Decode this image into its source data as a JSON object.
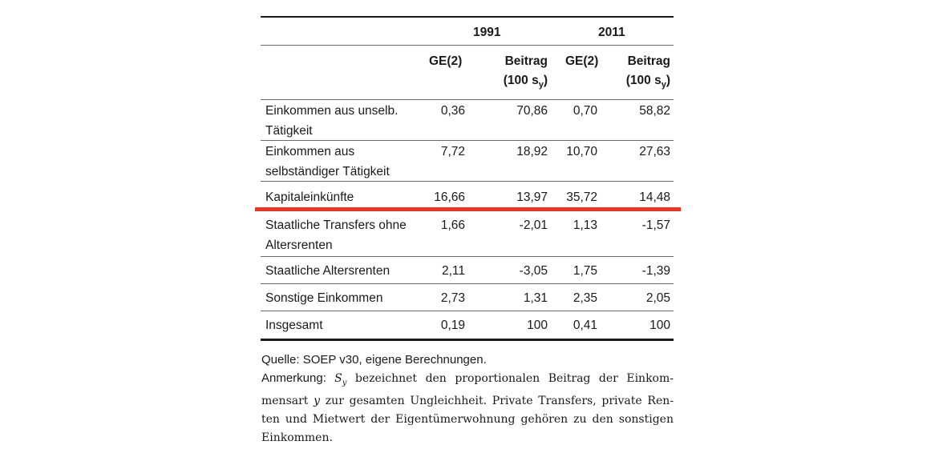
{
  "table": {
    "year1": "1991",
    "year2": "2011",
    "col_ge": "GE(2)",
    "col_beitrag_line1": "Beitrag",
    "col_beitrag_line2": "(100 s",
    "col_beitrag_sub": "y",
    "col_beitrag_close": ")",
    "rows": [
      {
        "label_l1": "Einkommen aus unselb.",
        "label_l2": "Tätigkeit",
        "ge1991": "0,36",
        "b1991": "70,86",
        "ge2011": "0,70",
        "b2011": "58,82"
      },
      {
        "label_l1": "Einkommen aus",
        "label_l2": "selbständiger Tätigkeit",
        "ge1991": "7,72",
        "b1991": "18,92",
        "ge2011": "10,70",
        "b2011": "27,63"
      },
      {
        "label_l1": "Kapitaleinkünfte",
        "label_l2": "",
        "ge1991": "16,66",
        "b1991": "13,97",
        "ge2011": "35,72",
        "b2011": "14,48"
      },
      {
        "label_l1": "Staatliche Transfers ohne",
        "label_l2": "Altersrenten",
        "ge1991": "1,66",
        "b1991": "-2,01",
        "ge2011": "1,13",
        "b2011": "-1,57"
      },
      {
        "label_l1": "Staatliche Altersrenten",
        "label_l2": "",
        "ge1991": "2,11",
        "b1991": "-3,05",
        "ge2011": "1,75",
        "b2011": "-1,39"
      },
      {
        "label_l1": "Sonstige Einkommen",
        "label_l2": "",
        "ge1991": "2,73",
        "b1991": "1,31",
        "ge2011": "2,35",
        "b2011": "2,05"
      },
      {
        "label_l1": "Insgesamt",
        "label_l2": "",
        "ge1991": "0,19",
        "b1991": "100",
        "ge2011": "0,41",
        "b2011": "100"
      }
    ]
  },
  "note": {
    "source": "Quelle: SOEP v30, eigene Berechnungen.",
    "remark_label": "Anmerkung: ",
    "s_symbol": "S",
    "s_sub": "y",
    "line1_rest": " bezeichnet den proportionalen Beitrag der Einkom-",
    "line2_a": "mensart ",
    "line2_y": "y",
    "line2_b": " zur gesamten Ungleichheit. Private Transfers, private Ren-",
    "line3": "ten und Mietwert der Eigentümerwohnung gehören zu den sonstigen",
    "line4": "Einkommen."
  },
  "colors": {
    "highlight_line": "#e8362a",
    "rules": "#1a1a1a"
  }
}
